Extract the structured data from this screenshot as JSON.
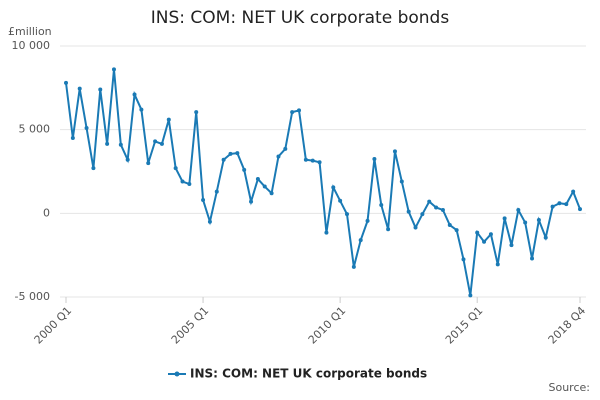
{
  "chart_data": {
    "type": "line",
    "title": "INS: COM: NET UK corporate bonds",
    "y_label": "£million",
    "source": "Source:",
    "categories": [
      "2000 Q1",
      null,
      null,
      null,
      null,
      null,
      null,
      null,
      null,
      null,
      null,
      null,
      null,
      null,
      null,
      null,
      null,
      null,
      null,
      null,
      "2005 Q1",
      null,
      null,
      null,
      null,
      null,
      null,
      null,
      null,
      null,
      null,
      null,
      null,
      null,
      null,
      null,
      null,
      null,
      null,
      null,
      "2010 Q1",
      null,
      null,
      null,
      null,
      null,
      null,
      null,
      null,
      null,
      null,
      null,
      null,
      null,
      null,
      null,
      null,
      null,
      null,
      null,
      "2015 Q1",
      null,
      null,
      null,
      null,
      null,
      null,
      null,
      null,
      null,
      null,
      null,
      null,
      null,
      null,
      "2018 Q4"
    ],
    "series": [
      {
        "name": "INS: COM: NET UK corporate bonds",
        "color": "#1a7ab5",
        "values": [
          7800,
          4500,
          7450,
          5100,
          2700,
          7400,
          4150,
          8600,
          4100,
          3200,
          7100,
          6200,
          3000,
          4300,
          4150,
          5600,
          2700,
          1900,
          1750,
          6050,
          800,
          -500,
          1300,
          3200,
          3550,
          3600,
          2600,
          700,
          2050,
          1600,
          1200,
          3400,
          3850,
          6050,
          6150,
          3200,
          3150,
          3050,
          -1150,
          1550,
          750,
          -50,
          -3200,
          -1600,
          -450,
          3250,
          500,
          -950,
          3700,
          1900,
          100,
          -850,
          -50,
          700,
          350,
          200,
          -700,
          -1000,
          -2750,
          -4900,
          -1150,
          -1700,
          -1250,
          -3050,
          -300,
          -1900,
          200,
          -550,
          -2700,
          -400,
          -1450,
          400,
          600,
          550,
          1300,
          250
        ]
      }
    ],
    "ylim": [
      -5000,
      10000
    ],
    "yticks": [
      {
        "value": -5000,
        "label": "-5 000"
      },
      0,
      {
        "value": 5000,
        "label": "5 000"
      },
      {
        "value": 10000,
        "label": "10 000"
      }
    ],
    "grid": true,
    "legend": "bottom"
  }
}
